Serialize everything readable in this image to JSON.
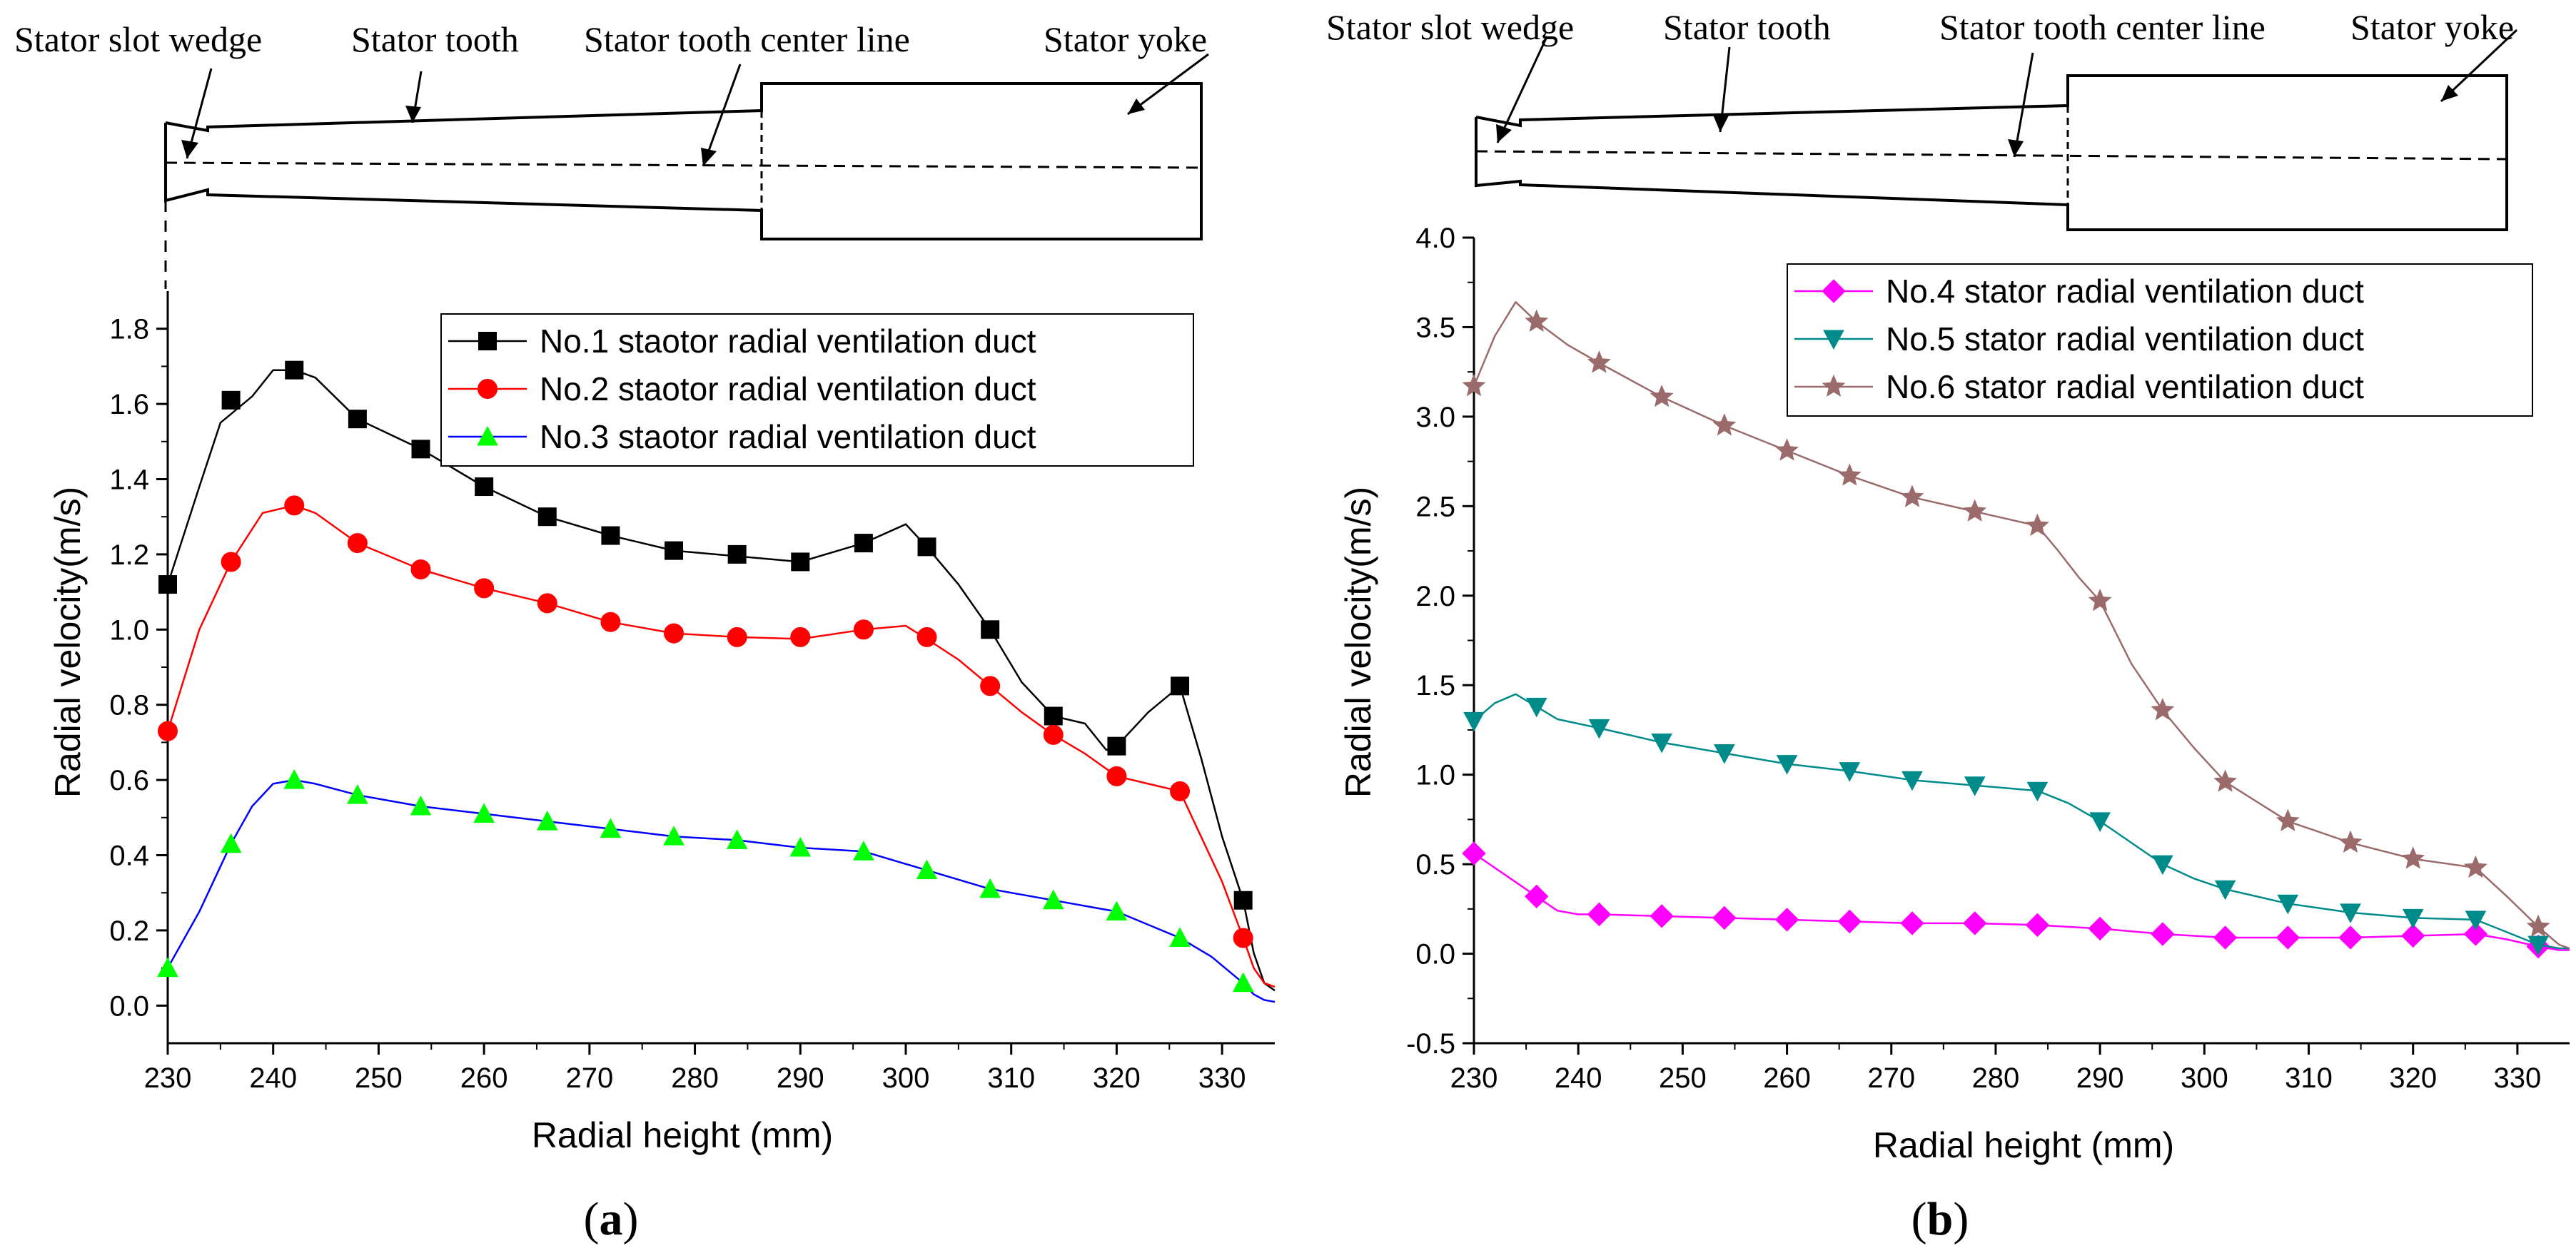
{
  "chart_data": [
    {
      "panel": "a",
      "type": "line",
      "caption_open": "(",
      "caption_letter": "a",
      "caption_close": ")",
      "xlabel": "Radial height (mm)",
      "ylabel": "Radial velocity(m/s)",
      "xlim": [
        230,
        335
      ],
      "ylim": [
        -0.1,
        1.9
      ],
      "xticks": [
        230,
        240,
        250,
        260,
        270,
        280,
        290,
        300,
        310,
        320,
        330
      ],
      "yticks": [
        "0.0",
        "0.2",
        "0.4",
        "0.6",
        "0.8",
        "1.0",
        "1.2",
        "1.4",
        "1.6",
        "1.8"
      ],
      "ytick_values": [
        0,
        0.2,
        0.4,
        0.6,
        0.8,
        1.0,
        1.2,
        1.4,
        1.6,
        1.8
      ],
      "legend_position": "top-right",
      "diagram_labels": [
        "Stator slot wedge",
        "Stator tooth",
        "Stator tooth center line",
        "Stator yoke"
      ],
      "series": [
        {
          "name": "No.1 staotor radial ventilation duct",
          "color": "#000000",
          "marker": "square",
          "curve": [
            [
              230,
              1.12
            ],
            [
              233,
              1.38
            ],
            [
              235,
              1.55
            ],
            [
              238,
              1.62
            ],
            [
              240,
              1.69
            ],
            [
              242,
              1.69
            ],
            [
              244,
              1.67
            ],
            [
              248,
              1.56
            ],
            [
              254,
              1.48
            ],
            [
              260,
              1.38
            ],
            [
              266,
              1.3
            ],
            [
              272,
              1.25
            ],
            [
              278,
              1.21
            ],
            [
              284,
              1.195
            ],
            [
              290,
              1.18
            ],
            [
              296,
              1.23
            ],
            [
              300,
              1.28
            ],
            [
              302,
              1.22
            ],
            [
              305,
              1.12
            ],
            [
              308,
              1.0
            ],
            [
              311,
              0.86
            ],
            [
              314,
              0.77
            ],
            [
              317,
              0.75
            ],
            [
              319,
              0.68
            ],
            [
              320,
              0.69
            ],
            [
              323,
              0.78
            ],
            [
              326,
              0.85
            ],
            [
              328,
              0.66
            ],
            [
              330,
              0.45
            ],
            [
              332,
              0.28
            ],
            [
              333,
              0.14
            ],
            [
              334,
              0.06
            ],
            [
              335,
              0.04
            ]
          ],
          "x": [
            230,
            236,
            242,
            248,
            254,
            260,
            266,
            272,
            278,
            284,
            290,
            296,
            302,
            308,
            314,
            320,
            326,
            332
          ],
          "y": [
            1.12,
            1.61,
            1.69,
            1.56,
            1.48,
            1.38,
            1.3,
            1.25,
            1.21,
            1.2,
            1.18,
            1.23,
            1.22,
            1.0,
            0.77,
            0.69,
            0.85,
            0.28
          ]
        },
        {
          "name": "No.2 staotor radial ventilation duct",
          "color": "#ff0000",
          "marker": "circle",
          "curve": [
            [
              230,
              0.73
            ],
            [
              233,
              1.0
            ],
            [
              236,
              1.18
            ],
            [
              239,
              1.31
            ],
            [
              242,
              1.33
            ],
            [
              244,
              1.31
            ],
            [
              248,
              1.23
            ],
            [
              254,
              1.16
            ],
            [
              260,
              1.11
            ],
            [
              266,
              1.07
            ],
            [
              272,
              1.02
            ],
            [
              278,
              0.99
            ],
            [
              284,
              0.98
            ],
            [
              290,
              0.975
            ],
            [
              296,
              1.0
            ],
            [
              300,
              1.01
            ],
            [
              302,
              0.975
            ],
            [
              305,
              0.92
            ],
            [
              308,
              0.85
            ],
            [
              311,
              0.78
            ],
            [
              314,
              0.72
            ],
            [
              317,
              0.67
            ],
            [
              320,
              0.61
            ],
            [
              323,
              0.59
            ],
            [
              326,
              0.57
            ],
            [
              328,
              0.45
            ],
            [
              330,
              0.33
            ],
            [
              332,
              0.18
            ],
            [
              333,
              0.1
            ],
            [
              334,
              0.06
            ],
            [
              335,
              0.05
            ]
          ],
          "x": [
            230,
            236,
            242,
            248,
            254,
            260,
            266,
            272,
            278,
            284,
            290,
            296,
            302,
            308,
            314,
            320,
            326,
            332
          ],
          "y": [
            0.73,
            1.18,
            1.33,
            1.23,
            1.16,
            1.11,
            1.07,
            1.02,
            0.99,
            0.98,
            0.98,
            1.0,
            0.98,
            0.85,
            0.72,
            0.61,
            0.57,
            0.18
          ]
        },
        {
          "name": "No.3 staotor radial ventilation duct",
          "color": "#0000ff",
          "marker": "triangle",
          "marker_fill": "#00ff00",
          "curve": [
            [
              230,
              0.1
            ],
            [
              233,
              0.25
            ],
            [
              236,
              0.43
            ],
            [
              238,
              0.53
            ],
            [
              240,
              0.59
            ],
            [
              242,
              0.6
            ],
            [
              244,
              0.59
            ],
            [
              248,
              0.56
            ],
            [
              254,
              0.53
            ],
            [
              260,
              0.51
            ],
            [
              266,
              0.49
            ],
            [
              272,
              0.47
            ],
            [
              278,
              0.45
            ],
            [
              284,
              0.44
            ],
            [
              290,
              0.42
            ],
            [
              296,
              0.41
            ],
            [
              302,
              0.36
            ],
            [
              308,
              0.31
            ],
            [
              314,
              0.28
            ],
            [
              320,
              0.25
            ],
            [
              326,
              0.18
            ],
            [
              329,
              0.13
            ],
            [
              332,
              0.06
            ],
            [
              333,
              0.03
            ],
            [
              334,
              0.015
            ],
            [
              335,
              0.01
            ]
          ],
          "x": [
            230,
            236,
            242,
            248,
            254,
            260,
            266,
            272,
            278,
            284,
            290,
            296,
            302,
            308,
            314,
            320,
            326,
            332
          ],
          "y": [
            0.1,
            0.43,
            0.6,
            0.56,
            0.53,
            0.51,
            0.49,
            0.47,
            0.45,
            0.44,
            0.42,
            0.41,
            0.36,
            0.31,
            0.28,
            0.25,
            0.18,
            0.06
          ]
        }
      ]
    },
    {
      "panel": "b",
      "type": "line",
      "caption_open": "(",
      "caption_letter": "b",
      "caption_close": ")",
      "xlabel": "Radial height (mm)",
      "ylabel": "Radial velocity(m/s)",
      "xlim": [
        230,
        335
      ],
      "ylim": [
        -0.5,
        4.0
      ],
      "xticks": [
        230,
        240,
        250,
        260,
        270,
        280,
        290,
        300,
        310,
        320,
        330
      ],
      "yticks": [
        "-0.5",
        "0.0",
        "0.5",
        "1.0",
        "1.5",
        "2.0",
        "2.5",
        "3.0",
        "3.5",
        "4.0"
      ],
      "ytick_values": [
        -0.5,
        0,
        0.5,
        1.0,
        1.5,
        2.0,
        2.5,
        3.0,
        3.5,
        4.0
      ],
      "legend_position": "top-right",
      "diagram_labels": [
        "Stator slot wedge",
        "Stator tooth",
        "Stator tooth center line",
        "Stator yoke"
      ],
      "series": [
        {
          "name": "No.4 stator radial ventilation duct",
          "color": "#ff00ff",
          "marker": "diamond",
          "curve": [
            [
              230,
              0.56
            ],
            [
              233,
              0.44
            ],
            [
              236,
              0.32
            ],
            [
              238,
              0.24
            ],
            [
              240,
              0.22
            ],
            [
              242,
              0.22
            ],
            [
              248,
              0.21
            ],
            [
              254,
              0.2
            ],
            [
              260,
              0.19
            ],
            [
              266,
              0.18
            ],
            [
              272,
              0.17
            ],
            [
              278,
              0.17
            ],
            [
              284,
              0.16
            ],
            [
              290,
              0.14
            ],
            [
              296,
              0.11
            ],
            [
              302,
              0.09
            ],
            [
              308,
              0.09
            ],
            [
              314,
              0.09
            ],
            [
              320,
              0.1
            ],
            [
              326,
              0.11
            ],
            [
              329,
              0.08
            ],
            [
              332,
              0.04
            ],
            [
              334,
              0.02
            ],
            [
              335,
              0.02
            ]
          ],
          "x": [
            230,
            236,
            242,
            248,
            254,
            260,
            266,
            272,
            278,
            284,
            290,
            296,
            302,
            308,
            314,
            320,
            326,
            332
          ],
          "y": [
            0.56,
            0.32,
            0.22,
            0.21,
            0.2,
            0.19,
            0.18,
            0.17,
            0.17,
            0.16,
            0.14,
            0.11,
            0.09,
            0.09,
            0.09,
            0.1,
            0.11,
            0.04
          ]
        },
        {
          "name": "No.5 stator radial ventilation duct",
          "color": "#008b8b",
          "marker": "triangle-down",
          "curve": [
            [
              230,
              1.3
            ],
            [
              232,
              1.4
            ],
            [
              234,
              1.45
            ],
            [
              236,
              1.38
            ],
            [
              238,
              1.31
            ],
            [
              242,
              1.26
            ],
            [
              248,
              1.18
            ],
            [
              254,
              1.12
            ],
            [
              260,
              1.06
            ],
            [
              266,
              1.02
            ],
            [
              272,
              0.97
            ],
            [
              278,
              0.94
            ],
            [
              284,
              0.91
            ],
            [
              287,
              0.84
            ],
            [
              290,
              0.74
            ],
            [
              293,
              0.62
            ],
            [
              296,
              0.5
            ],
            [
              299,
              0.42
            ],
            [
              302,
              0.36
            ],
            [
              308,
              0.28
            ],
            [
              314,
              0.23
            ],
            [
              320,
              0.2
            ],
            [
              326,
              0.19
            ],
            [
              329,
              0.12
            ],
            [
              332,
              0.05
            ],
            [
              334,
              0.03
            ],
            [
              335,
              0.03
            ]
          ],
          "x": [
            230,
            236,
            242,
            248,
            254,
            260,
            266,
            272,
            278,
            284,
            290,
            296,
            302,
            308,
            314,
            320,
            326,
            332
          ],
          "y": [
            1.3,
            1.38,
            1.26,
            1.18,
            1.12,
            1.06,
            1.02,
            0.97,
            0.94,
            0.91,
            0.74,
            0.5,
            0.36,
            0.28,
            0.23,
            0.2,
            0.19,
            0.05
          ]
        },
        {
          "name": "No.6 stator radial ventilation duct",
          "color": "#9b6b6b",
          "marker": "star",
          "curve": [
            [
              230,
              3.17
            ],
            [
              232,
              3.45
            ],
            [
              234,
              3.64
            ],
            [
              236,
              3.53
            ],
            [
              239,
              3.4
            ],
            [
              242,
              3.3
            ],
            [
              248,
              3.11
            ],
            [
              254,
              2.95
            ],
            [
              260,
              2.81
            ],
            [
              266,
              2.67
            ],
            [
              272,
              2.55
            ],
            [
              278,
              2.47
            ],
            [
              284,
              2.39
            ],
            [
              286,
              2.25
            ],
            [
              288,
              2.1
            ],
            [
              290,
              1.97
            ],
            [
              293,
              1.62
            ],
            [
              296,
              1.36
            ],
            [
              299,
              1.15
            ],
            [
              302,
              0.96
            ],
            [
              305,
              0.85
            ],
            [
              308,
              0.74
            ],
            [
              314,
              0.62
            ],
            [
              320,
              0.53
            ],
            [
              326,
              0.48
            ],
            [
              329,
              0.32
            ],
            [
              332,
              0.15
            ],
            [
              334,
              0.05
            ],
            [
              335,
              0.03
            ]
          ],
          "x": [
            230,
            236,
            242,
            248,
            254,
            260,
            266,
            272,
            278,
            284,
            290,
            296,
            302,
            308,
            314,
            320,
            326,
            332
          ],
          "y": [
            3.17,
            3.53,
            3.3,
            3.11,
            2.95,
            2.81,
            2.67,
            2.55,
            2.47,
            2.39,
            1.97,
            1.36,
            0.96,
            0.74,
            0.62,
            0.53,
            0.48,
            0.15
          ]
        }
      ]
    }
  ]
}
